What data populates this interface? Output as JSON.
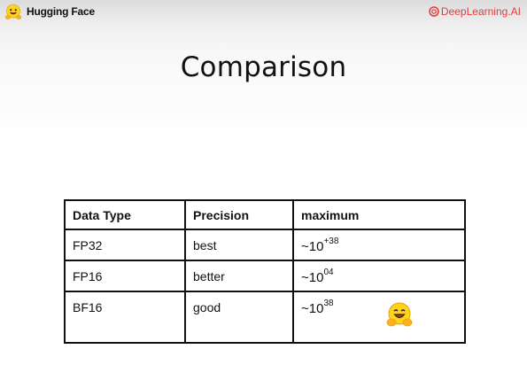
{
  "header": {
    "brand_left": "Hugging Face",
    "brand_right": "DeepLearning.AI",
    "brand_right_color": "#e33b3b",
    "left_icon": "hugging-face-emoji-icon",
    "right_icon": "deeplearning-ai-logo-icon"
  },
  "slide": {
    "title": "Comparison"
  },
  "table": {
    "headers": [
      "Data Type",
      "Precision",
      "maximum"
    ],
    "rows": [
      {
        "type": "FP32",
        "precision": "best",
        "max_base": "~10",
        "max_exp": "+38"
      },
      {
        "type": "FP16",
        "precision": "better",
        "max_base": "~10",
        "max_exp": "04"
      },
      {
        "type": "BF16",
        "precision": "good",
        "max_base": "~10",
        "max_exp": "38"
      }
    ]
  },
  "decor": {
    "row_icon": "hugging-face-emoji-icon"
  }
}
